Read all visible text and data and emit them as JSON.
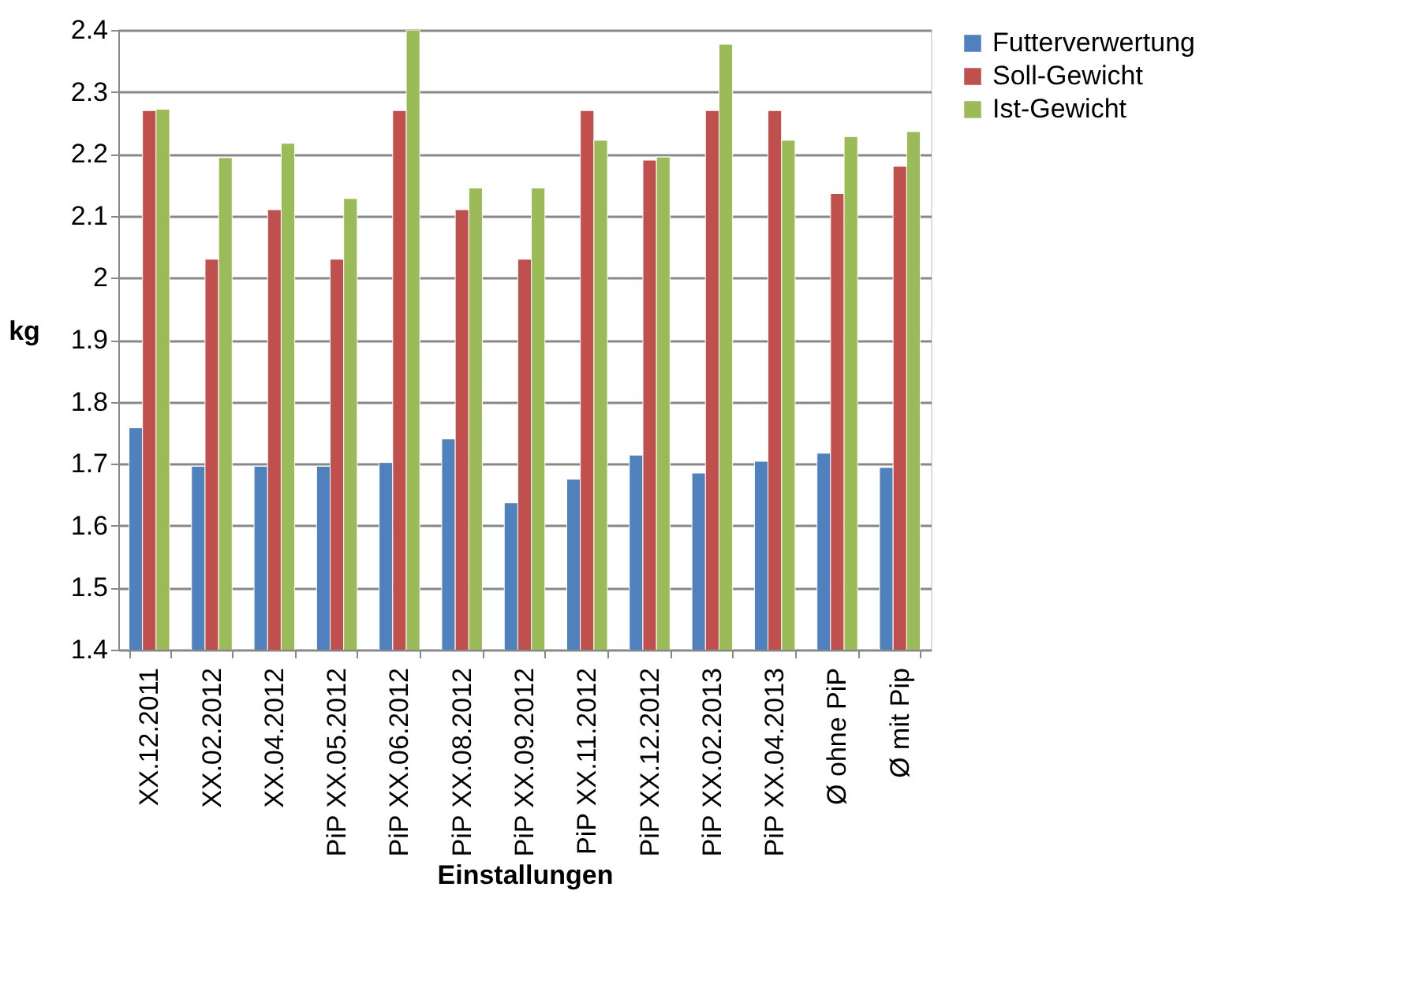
{
  "chart_data": {
    "type": "bar",
    "xlabel": "Einstallungen",
    "ylabel": "kg",
    "categories": [
      "XX.12.2011",
      "XX.02.2012",
      "XX.04.2012",
      "PiP XX.05.2012",
      "PiP XX.06.2012",
      "PiP XX.08.2012",
      "PiP XX.09.2012",
      "PiP XX.11.2012",
      "PiP XX.12.2012",
      "PiP XX.02.2013",
      "PiP XX.04.2013",
      "Ø ohne PiP",
      "Ø mit Pip"
    ],
    "series": [
      {
        "name": "Futterverwertung",
        "color": "#4f81bd",
        "values": [
          1.758,
          1.696,
          1.696,
          1.696,
          1.702,
          1.74,
          1.637,
          1.675,
          1.714,
          1.685,
          1.704,
          1.717,
          1.694
        ]
      },
      {
        "name": "Soll-Gewicht",
        "color": "#c0504d",
        "values": [
          2.27,
          2.03,
          2.11,
          2.03,
          2.27,
          2.11,
          2.03,
          2.27,
          2.19,
          2.27,
          2.27,
          2.136,
          2.18
        ]
      },
      {
        "name": "Ist-Gewicht",
        "color": "#9bbb59",
        "values": [
          2.272,
          2.194,
          2.217,
          2.128,
          2.4,
          2.145,
          2.145,
          2.222,
          2.195,
          2.377,
          2.222,
          2.228,
          2.236
        ]
      }
    ],
    "ylim": [
      1.4,
      2.4
    ],
    "yticks": [
      1.4,
      1.5,
      1.6,
      1.7,
      1.8,
      1.9,
      {
        "value": 2,
        "label": "2"
      },
      2.1,
      2.2,
      2.3,
      2.4
    ],
    "grid": "y",
    "legend": "right"
  }
}
